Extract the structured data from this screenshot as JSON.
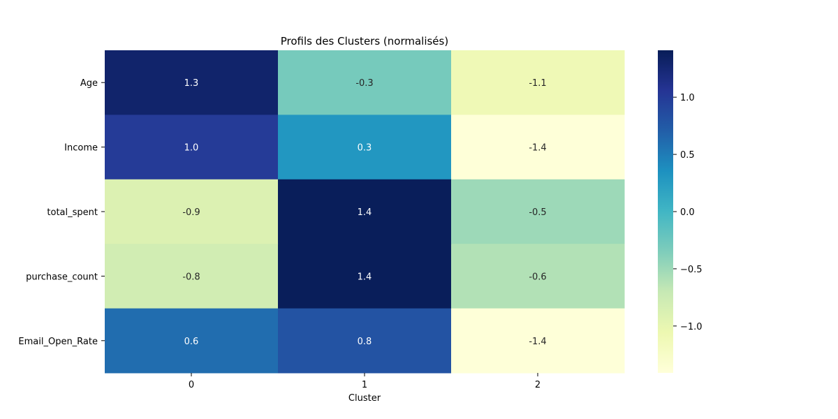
{
  "chart_data": {
    "type": "heatmap",
    "title": "Profils des Clusters (normalisés)",
    "xlabel": "Cluster",
    "ylabel": "",
    "x_categories": [
      "0",
      "1",
      "2"
    ],
    "y_categories": [
      "Age",
      "Income",
      "total_spent",
      "purchase_count",
      "Email_Open_Rate"
    ],
    "values": [
      [
        1.3,
        -0.3,
        -1.1
      ],
      [
        1.0,
        0.3,
        -1.4
      ],
      [
        -0.9,
        1.4,
        -0.5
      ],
      [
        -0.8,
        1.4,
        -0.6
      ],
      [
        0.6,
        0.8,
        -1.4
      ]
    ],
    "value_labels": [
      [
        "1.3",
        "-0.3",
        "-1.1"
      ],
      [
        "1.0",
        "0.3",
        "-1.4"
      ],
      [
        "-0.9",
        "1.4",
        "-0.5"
      ],
      [
        "-0.8",
        "1.4",
        "-0.6"
      ],
      [
        "0.6",
        "0.8",
        "-1.4"
      ]
    ],
    "colormap": "YlGnBu",
    "colorbar": {
      "range": [
        -1.41,
        1.41
      ],
      "ticks": [
        1.0,
        0.5,
        0.0,
        -0.5,
        -1.0
      ],
      "tick_labels": [
        "1.0",
        "0.5",
        "0.0",
        "−0.5",
        "−1.0"
      ]
    },
    "colormap_stops": [
      "#ffffd9",
      "#edf8b1",
      "#c7e9b4",
      "#7fcdbb",
      "#41b6c4",
      "#1d91c0",
      "#225ea8",
      "#253494",
      "#081d58"
    ]
  }
}
